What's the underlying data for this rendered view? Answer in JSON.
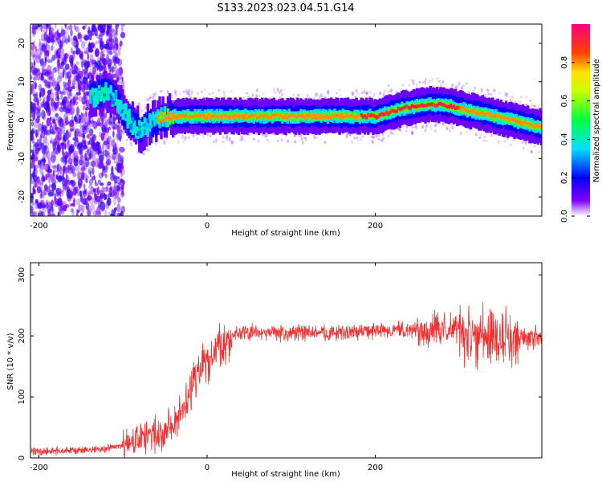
{
  "figure_title": "S133.2023.023.04.51.G14",
  "colors": {
    "snr_line": "#f03030",
    "axis": "#000000"
  },
  "chart_data": [
    {
      "type": "heatmap",
      "xlabel": "Height of straight line (km)",
      "ylabel": "Frequency (Hz)",
      "xlim": [
        -210,
        398
      ],
      "ylim": [
        -25,
        25
      ],
      "x_ticks": [
        -200,
        0,
        200
      ],
      "y_ticks": [
        20,
        10,
        0,
        -10,
        -20
      ],
      "grid": false,
      "ridge_x": [
        -140,
        -120,
        -110,
        -100,
        -90,
        -80,
        -70,
        -60,
        -50,
        -40,
        -20,
        0,
        50,
        100,
        150,
        180,
        200,
        230,
        260,
        280,
        300,
        320,
        340,
        360,
        398
      ],
      "ridge_y": [
        6,
        7,
        5,
        2,
        -1,
        -3,
        -1,
        0,
        1,
        1,
        1,
        1,
        1,
        1,
        1,
        1,
        1,
        3,
        4,
        4,
        3,
        2,
        1,
        0,
        -2
      ],
      "colorbar": {
        "label": "Normalized spectral amplitude",
        "range": [
          0,
          1
        ],
        "ticks": [
          0.0,
          0.2,
          0.4,
          0.6,
          0.8
        ],
        "tick_labels": [
          "0.0",
          "0.2",
          "0.4",
          "0.6",
          "0.8"
        ]
      }
    },
    {
      "type": "line",
      "xlabel": "Height of straight line (km)",
      "ylabel": "SNR (10 * v/v)",
      "xlim": [
        -210,
        398
      ],
      "ylim": [
        0,
        320
      ],
      "x_ticks": [
        -200,
        0,
        200
      ],
      "y_ticks": [
        0,
        100,
        200,
        300
      ],
      "grid": false,
      "series": [
        {
          "x": [
            -210,
            -150,
            -120,
            -100,
            -80,
            -60,
            -40,
            -30,
            -20,
            -10,
            0,
            10,
            20,
            30,
            40,
            60,
            80,
            100,
            150,
            200,
            250,
            300,
            320,
            340,
            360,
            380,
            398
          ],
          "y": [
            10,
            12,
            15,
            20,
            30,
            40,
            55,
            80,
            110,
            140,
            160,
            175,
            190,
            200,
            205,
            205,
            205,
            205,
            205,
            208,
            210,
            210,
            200,
            200,
            195,
            198,
            200
          ]
        }
      ]
    }
  ]
}
